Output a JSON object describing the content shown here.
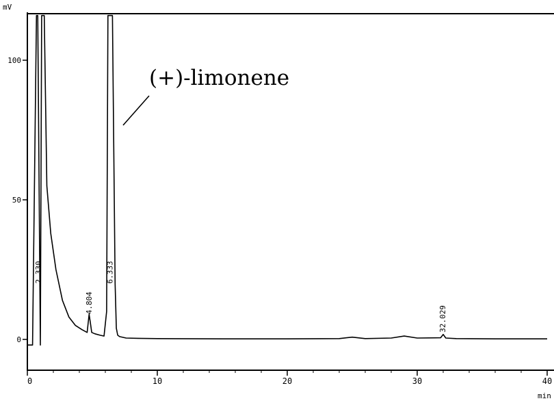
{
  "chart_data": {
    "type": "line",
    "title": "",
    "xlabel": "min",
    "ylabel": "mV",
    "xlim": [
      0,
      40
    ],
    "ylim": [
      -12,
      117
    ],
    "x_ticks": [
      "0",
      "10",
      "20",
      "30",
      "40"
    ],
    "y_ticks": [
      "0",
      "50",
      "100"
    ],
    "grid": false,
    "peaks": [
      {
        "label": "2.330",
        "x": 0.9
      },
      {
        "label": "4.804",
        "x": 4.8
      },
      {
        "label": "6.333",
        "x": 6.4
      },
      {
        "label": "32.029",
        "x": 32.0
      }
    ],
    "annotation": "(+)-limonene",
    "series": [
      {
        "x": [
          0,
          0.4,
          0.7,
          0.8,
          1.0,
          1.1,
          1.3,
          1.5,
          1.8,
          2.2,
          2.7,
          3.2,
          3.7,
          4.2,
          4.6,
          4.75,
          4.85,
          4.95,
          5.2,
          5.6,
          5.9,
          6.1,
          6.2,
          6.3,
          6.55,
          6.75,
          6.85,
          6.95,
          7.1,
          7.6,
          8.5,
          10,
          15,
          20,
          24,
          25,
          26,
          28,
          29,
          30,
          31.8,
          32.0,
          32.2,
          33,
          36,
          40
        ],
        "y": [
          -2,
          -2,
          116,
          116,
          -2,
          116,
          116,
          55,
          38,
          25,
          14,
          8,
          5,
          3.5,
          2.5,
          9,
          6,
          2.5,
          2,
          1.5,
          1.2,
          10,
          116,
          116,
          116,
          20,
          4,
          1.5,
          1,
          0.5,
          0.4,
          0.3,
          0.2,
          0.2,
          0.3,
          0.8,
          0.3,
          0.5,
          1.2,
          0.5,
          0.6,
          1.8,
          0.5,
          0.3,
          0.2,
          0.2
        ]
      }
    ]
  }
}
